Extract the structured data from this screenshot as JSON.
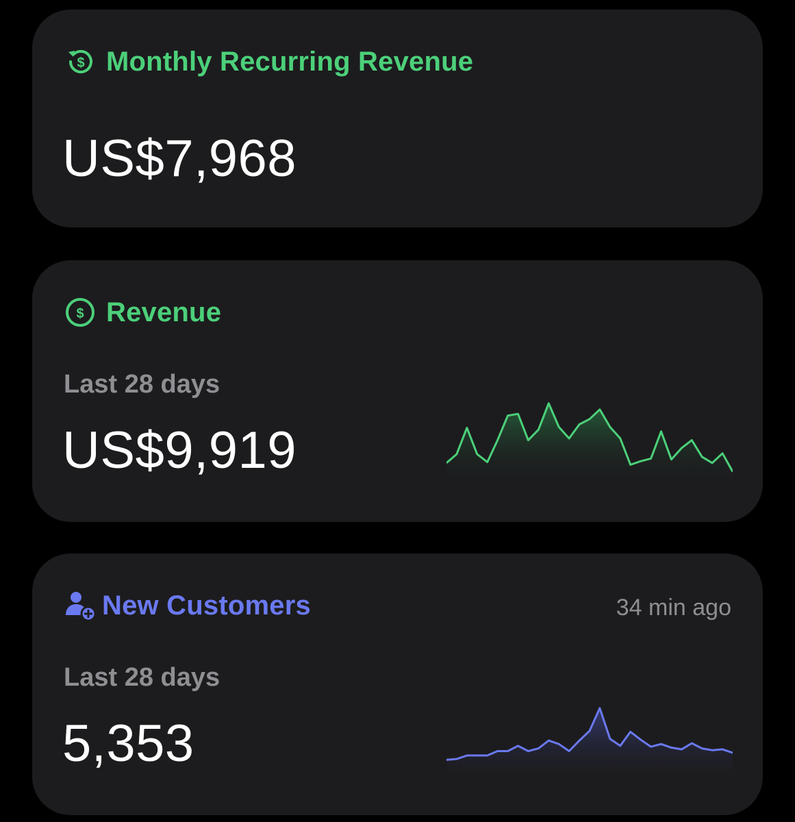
{
  "colors": {
    "background": "#000000",
    "card": "#1c1c1e",
    "green_accent": "#4cd07a",
    "blue_accent": "#6a79f0",
    "muted_text": "#8e8e93",
    "primary_text": "#ffffff"
  },
  "cards": {
    "mrr": {
      "icon": "recurring-dollar-icon",
      "title": "Monthly Recurring Revenue",
      "value": "US$7,968"
    },
    "revenue": {
      "icon": "dollar-circle-icon",
      "title": "Revenue",
      "subtitle": "Last 28 days",
      "value": "US$9,919",
      "sparkline": [
        78,
        68,
        38,
        68,
        77,
        52,
        24,
        22,
        52,
        40,
        10,
        37,
        50,
        34,
        28,
        17,
        37,
        50,
        80,
        76,
        73,
        42,
        74,
        61,
        52,
        71,
        78,
        67,
        88
      ]
    },
    "customers": {
      "icon": "user-plus-icon",
      "title": "New Customers",
      "time_ago": "34 min ago",
      "subtitle": "Last 28 days",
      "value": "5,353",
      "sparkline": [
        24,
        25,
        29,
        29,
        29,
        34,
        34,
        40,
        34,
        37,
        46,
        42,
        34,
        46,
        57,
        83,
        48,
        40,
        56,
        47,
        39,
        42,
        38,
        36,
        43,
        37,
        35,
        36,
        32
      ]
    }
  }
}
